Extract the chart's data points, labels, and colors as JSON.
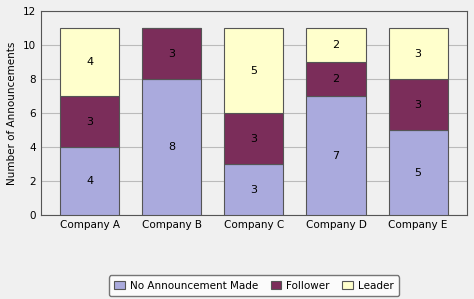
{
  "categories": [
    "Company A",
    "Company B",
    "Company C",
    "Company D",
    "Company E"
  ],
  "no_announcement": [
    4,
    8,
    3,
    7,
    5
  ],
  "follower": [
    3,
    3,
    3,
    2,
    3
  ],
  "leader": [
    4,
    0,
    5,
    2,
    3
  ],
  "color_no_announcement": "#aaaadd",
  "color_follower": "#7b2d5a",
  "color_leader": "#ffffcc",
  "ylabel": "Number of Announcements",
  "ylim": [
    0,
    12
  ],
  "yticks": [
    0,
    2,
    4,
    6,
    8,
    10,
    12
  ],
  "legend_labels": [
    "No Announcement Made",
    "Follower",
    "Leader"
  ],
  "bar_width": 0.72,
  "bar_edge_color": "#555555",
  "background_color": "#f0f0f0",
  "plot_bg_color": "#f0f0f0",
  "grid_color": "#bbbbbb",
  "tick_fontsize": 7.5,
  "label_fontsize": 7.5
}
